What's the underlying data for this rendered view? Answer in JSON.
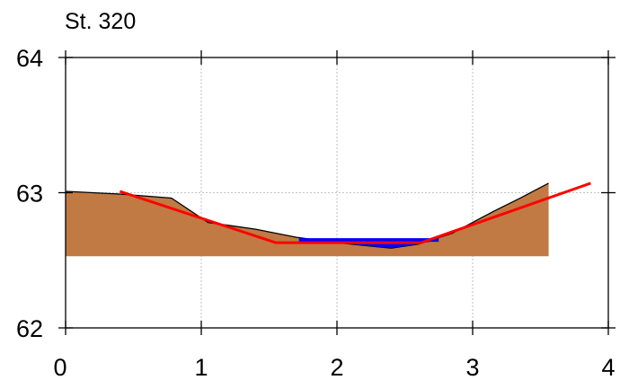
{
  "chart_data": {
    "type": "area",
    "title": "St. 320",
    "xlabel": "",
    "ylabel": "",
    "xlim": [
      0,
      4
    ],
    "ylim": [
      62,
      64
    ],
    "xticks": [
      0,
      1,
      2,
      3,
      4
    ],
    "yticks": [
      62,
      63,
      64
    ],
    "grid": true,
    "colors": {
      "ground": "#c17a43",
      "ground_outline": "#000000",
      "water": "#0000ff",
      "fit_line": "#ff0000",
      "grid": "#b0b0b0",
      "axis": "#000000"
    },
    "series": [
      {
        "kind": "ground-profile",
        "base": 62.53,
        "x": [
          0.0,
          0.4,
          0.78,
          1.05,
          1.4,
          1.7,
          2.0,
          2.2,
          2.4,
          2.6,
          2.85,
          3.15,
          3.35,
          3.56
        ],
        "y": [
          63.01,
          62.99,
          62.96,
          62.78,
          62.73,
          62.67,
          62.63,
          62.61,
          62.59,
          62.62,
          62.7,
          62.86,
          62.96,
          63.07
        ]
      },
      {
        "kind": "water-surface",
        "level": 62.65,
        "x": [
          1.72,
          2.75
        ]
      },
      {
        "kind": "fitted-trapezoid",
        "x": [
          0.4,
          1.55,
          2.62,
          3.87
        ],
        "y": [
          63.01,
          62.63,
          62.63,
          63.07
        ]
      }
    ]
  }
}
